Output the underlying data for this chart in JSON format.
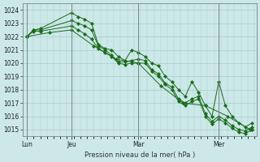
{
  "title": "Pression niveau de la mer( hPa )",
  "bg_color": "#cce8e8",
  "grid_color": "#aacccc",
  "line_color": "#1a6b1a",
  "marker_color": "#1a6b1a",
  "ylim": [
    1014.5,
    1024.5
  ],
  "yticks": [
    1015,
    1016,
    1017,
    1018,
    1019,
    1020,
    1021,
    1022,
    1023,
    1024
  ],
  "xlim_days": 6.0,
  "xtick_labels": [
    "Lun",
    "Jeu",
    "Mar",
    "Mer"
  ],
  "xtick_positions": [
    0.0,
    1.0,
    2.5,
    4.3
  ],
  "vline_positions": [
    0.0,
    1.0,
    2.5,
    4.3
  ],
  "series": [
    {
      "x": [
        0.0,
        0.15,
        0.3,
        1.0,
        1.15,
        1.3,
        1.45,
        1.6,
        1.75,
        1.9,
        2.05,
        2.2,
        2.35,
        2.5,
        2.65,
        2.8,
        2.95,
        3.1,
        3.25,
        3.4,
        3.55,
        3.7,
        3.85,
        4.0,
        4.15,
        4.3,
        4.45,
        4.6,
        4.75,
        4.9,
        5.05
      ],
      "y": [
        1022.0,
        1022.5,
        1022.6,
        1023.8,
        1023.5,
        1023.3,
        1023.0,
        1021.4,
        1021.1,
        1021.0,
        1020.5,
        1020.2,
        1021.0,
        1020.8,
        1020.5,
        1020.0,
        1019.8,
        1019.0,
        1018.6,
        1018.0,
        1017.5,
        1018.6,
        1017.8,
        1016.8,
        1016.0,
        1018.6,
        1016.8,
        1016.0,
        1015.5,
        1015.2,
        1015.5
      ]
    },
    {
      "x": [
        0.0,
        0.15,
        0.3,
        1.0,
        1.15,
        1.3,
        1.45,
        1.6,
        1.75,
        1.9,
        2.05,
        2.2,
        2.35,
        2.5,
        2.65,
        2.8,
        2.95,
        3.1,
        3.25,
        3.4,
        3.55,
        3.7,
        3.85,
        4.0,
        4.15,
        4.3,
        4.45,
        4.6,
        4.75,
        4.9,
        5.05
      ],
      "y": [
        1022.0,
        1022.5,
        1022.5,
        1023.2,
        1023.0,
        1022.8,
        1022.5,
        1021.3,
        1021.0,
        1020.6,
        1020.1,
        1020.1,
        1020.2,
        1020.3,
        1020.2,
        1019.5,
        1019.2,
        1018.5,
        1018.2,
        1017.3,
        1017.0,
        1017.3,
        1017.5,
        1016.2,
        1015.6,
        1016.0,
        1015.7,
        1015.3,
        1015.0,
        1014.9,
        1015.2
      ]
    },
    {
      "x": [
        0.0,
        0.15,
        0.3,
        1.0,
        1.15,
        1.3,
        1.45,
        1.6,
        1.75,
        1.9,
        2.05,
        2.2,
        2.35,
        2.5,
        2.65,
        2.8,
        2.95,
        3.1,
        3.25,
        3.4,
        3.55,
        3.7,
        3.85,
        4.0,
        4.15,
        4.3,
        4.45,
        4.6,
        4.75,
        4.9,
        5.05
      ],
      "y": [
        1022.0,
        1022.4,
        1022.4,
        1022.8,
        1022.5,
        1022.2,
        1021.8,
        1021.1,
        1020.8,
        1020.5,
        1020.0,
        1019.9,
        1020.0,
        1020.0,
        1020.0,
        1019.4,
        1019.0,
        1018.4,
        1018.0,
        1017.1,
        1016.8,
        1017.1,
        1017.3,
        1016.0,
        1015.4,
        1015.8,
        1015.5,
        1015.1,
        1014.8,
        1014.7,
        1015.0
      ]
    },
    {
      "x": [
        0.0,
        0.5,
        1.0,
        1.5,
        2.0,
        2.5,
        3.0,
        3.5,
        4.0,
        4.5,
        5.0,
        5.05
      ],
      "y": [
        1022.0,
        1022.3,
        1022.5,
        1021.3,
        1020.3,
        1020.0,
        1018.3,
        1017.0,
        1016.8,
        1016.0,
        1015.0,
        1015.0
      ]
    }
  ]
}
